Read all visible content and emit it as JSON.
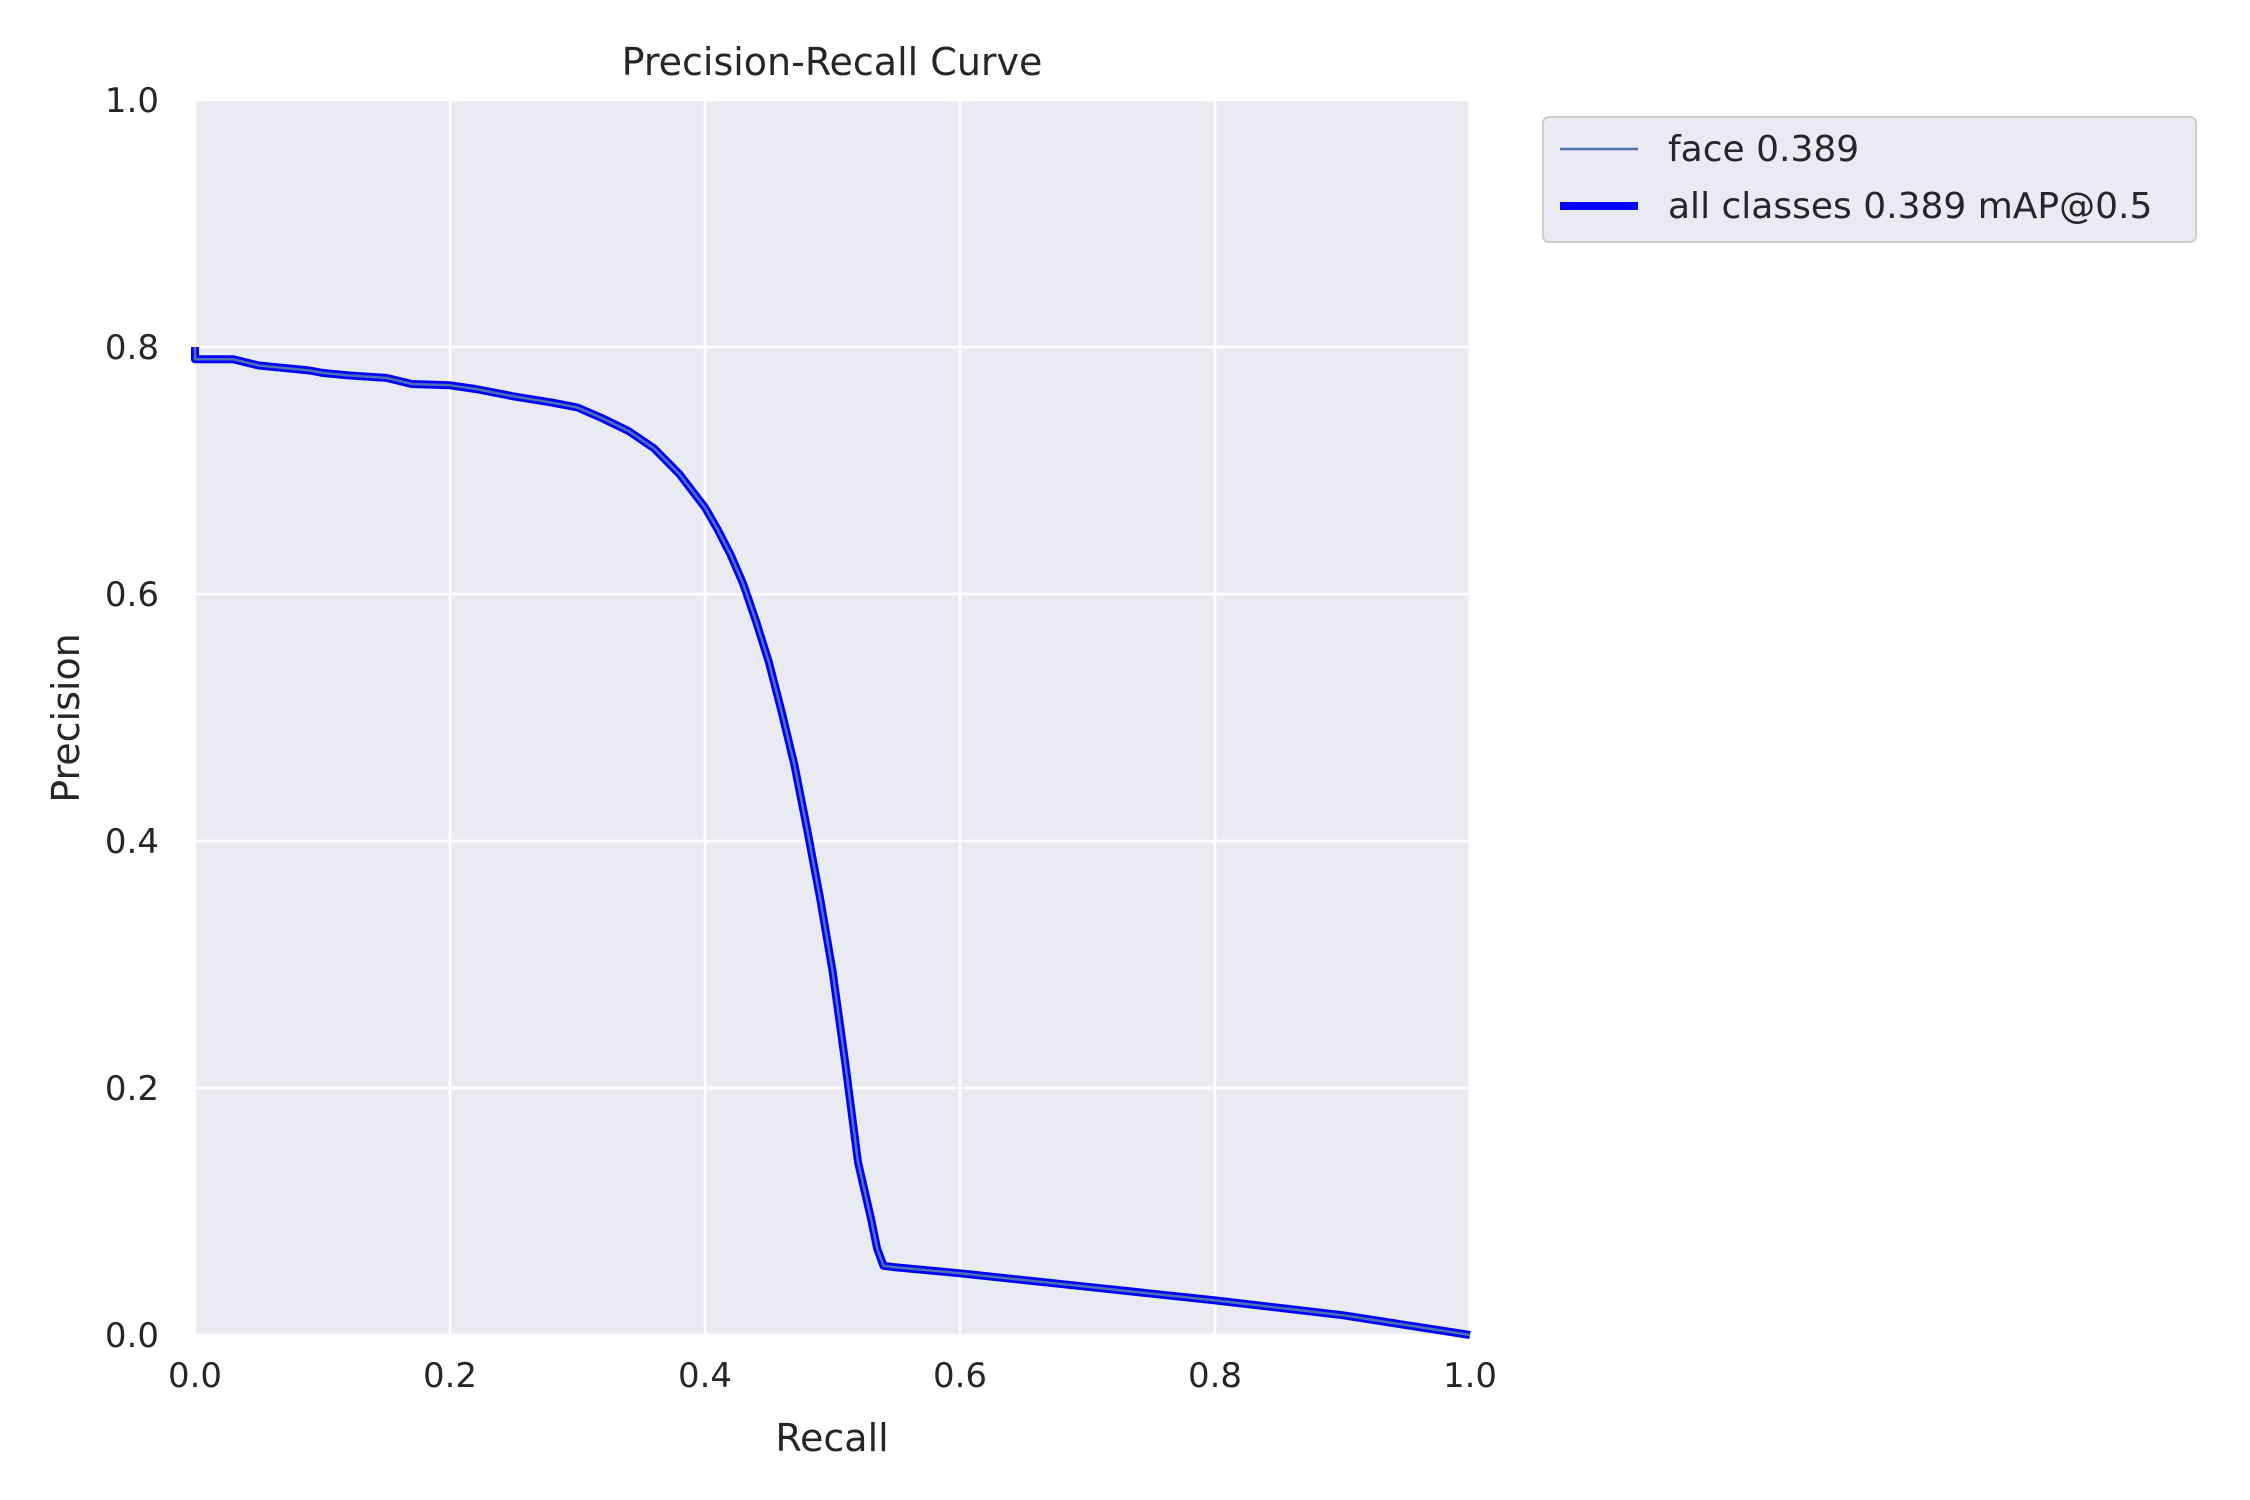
{
  "chart_data": {
    "type": "line",
    "title": "Precision-Recall Curve",
    "xlabel": "Recall",
    "ylabel": "Precision",
    "xlim": [
      0,
      1
    ],
    "ylim": [
      0,
      1
    ],
    "grid": true,
    "legend_position": "outside-top-right",
    "x_ticks": [
      "0.0",
      "0.2",
      "0.4",
      "0.6",
      "0.8",
      "1.0"
    ],
    "y_ticks": [
      "0.0",
      "0.2",
      "0.4",
      "0.6",
      "0.8",
      "1.0"
    ],
    "background_color": "#eaeaf2",
    "series": [
      {
        "name": "face 0.389",
        "color": "#4c72b0",
        "line": "thin",
        "x": [
          0.0,
          0.0,
          0.005,
          0.03,
          0.05,
          0.07,
          0.09,
          0.1,
          0.12,
          0.15,
          0.17,
          0.2,
          0.22,
          0.25,
          0.28,
          0.3,
          0.32,
          0.34,
          0.36,
          0.38,
          0.4,
          0.41,
          0.42,
          0.43,
          0.44,
          0.45,
          0.46,
          0.47,
          0.48,
          0.49,
          0.5,
          0.51,
          0.52,
          0.53,
          0.535,
          0.54,
          0.548,
          0.6,
          0.7,
          0.8,
          0.9,
          1.0
        ],
        "y": [
          0.8,
          0.79,
          0.79,
          0.79,
          0.785,
          0.783,
          0.781,
          0.779,
          0.777,
          0.775,
          0.77,
          0.769,
          0.766,
          0.76,
          0.755,
          0.751,
          0.742,
          0.732,
          0.718,
          0.697,
          0.67,
          0.652,
          0.632,
          0.608,
          0.578,
          0.545,
          0.505,
          0.462,
          0.41,
          0.355,
          0.295,
          0.22,
          0.14,
          0.095,
          0.07,
          0.056,
          0.055,
          0.05,
          0.039,
          0.028,
          0.016,
          0.0
        ]
      },
      {
        "name": "all classes 0.389 mAP@0.5",
        "color": "#0000ff",
        "line": "thick",
        "x": [
          0.0,
          0.0,
          0.005,
          0.03,
          0.05,
          0.07,
          0.09,
          0.1,
          0.12,
          0.15,
          0.17,
          0.2,
          0.22,
          0.25,
          0.28,
          0.3,
          0.32,
          0.34,
          0.36,
          0.38,
          0.4,
          0.41,
          0.42,
          0.43,
          0.44,
          0.45,
          0.46,
          0.47,
          0.48,
          0.49,
          0.5,
          0.51,
          0.52,
          0.53,
          0.535,
          0.54,
          0.548,
          0.6,
          0.7,
          0.8,
          0.9,
          1.0
        ],
        "y": [
          0.8,
          0.79,
          0.79,
          0.79,
          0.785,
          0.783,
          0.781,
          0.779,
          0.777,
          0.775,
          0.77,
          0.769,
          0.766,
          0.76,
          0.755,
          0.751,
          0.742,
          0.732,
          0.718,
          0.697,
          0.67,
          0.652,
          0.632,
          0.608,
          0.578,
          0.545,
          0.505,
          0.462,
          0.41,
          0.355,
          0.295,
          0.22,
          0.14,
          0.095,
          0.07,
          0.056,
          0.055,
          0.05,
          0.039,
          0.028,
          0.016,
          0.0
        ]
      }
    ]
  }
}
